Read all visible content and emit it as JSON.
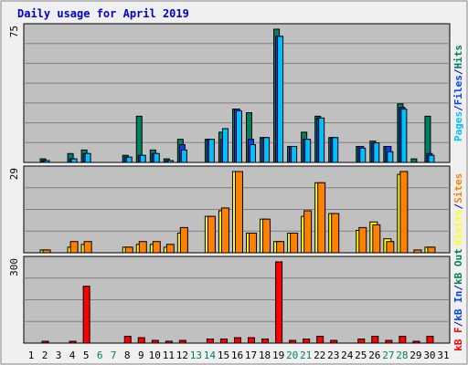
{
  "colors": {
    "background": "#f0f0f0",
    "plot_bg": "#c0c0c0",
    "title": "#0000cc",
    "hits": "#00805c",
    "files": "#0040ff",
    "pages": "#00c0ff",
    "visits": "#ffff00",
    "sites": "#ff8000",
    "kb_in": "#0040ff",
    "kb_out": "#00805c",
    "kb_f": "#ff0000",
    "weekend_label": "#00805c"
  },
  "chart_data": {
    "type": "bar",
    "title": "Daily usage for April 2019",
    "categories": [
      "1",
      "2",
      "3",
      "4",
      "5",
      "6",
      "7",
      "8",
      "9",
      "10",
      "11",
      "12",
      "13",
      "14",
      "15",
      "16",
      "17",
      "18",
      "19",
      "20",
      "21",
      "22",
      "23",
      "24",
      "25",
      "26",
      "27",
      "28",
      "29",
      "30",
      "31"
    ],
    "weekend_days": [
      "6",
      "7",
      "13",
      "14",
      "20",
      "21",
      "27",
      "28"
    ],
    "panels": [
      {
        "name": "top",
        "ytick": "75",
        "ymax": 75,
        "right_labels": [
          {
            "text": "Pages",
            "color_key": "pages"
          },
          {
            "text": "/",
            "color_key": "title"
          },
          {
            "text": "Files",
            "color_key": "files"
          },
          {
            "text": "/",
            "color_key": "title"
          },
          {
            "text": "Hits",
            "color_key": "hits"
          }
        ],
        "series": [
          {
            "name": "Hits",
            "color_key": "hits",
            "values": [
              0,
              2,
              0,
              5,
              7,
              0,
              0,
              4,
              26,
              7,
              2,
              13,
              0,
              13,
              17,
              30,
              28,
              14,
              75,
              9,
              17,
              26,
              14,
              0,
              9,
              12,
              9,
              33,
              2,
              26,
              0
            ]
          },
          {
            "name": "Files",
            "color_key": "files",
            "values": [
              0,
              1,
              0,
              2,
              5,
              0,
              0,
              3,
              4,
              5,
              1,
              10,
              0,
              13,
              13,
              30,
              13,
              14,
              71,
              9,
              13,
              25,
              14,
              0,
              9,
              11,
              9,
              31,
              0,
              5,
              0
            ]
          },
          {
            "name": "Pages",
            "color_key": "pages",
            "values": [
              0,
              1,
              0,
              2,
              5,
              0,
              0,
              3,
              4,
              5,
              1,
              7,
              0,
              13,
              19,
              29,
              10,
              14,
              71,
              9,
              13,
              25,
              14,
              0,
              8,
              11,
              6,
              30,
              0,
              4,
              0
            ]
          }
        ]
      },
      {
        "name": "middle",
        "ytick": "29",
        "ymax": 29,
        "right_labels": [
          {
            "text": "Visits",
            "color_key": "visits"
          },
          {
            "text": "/",
            "color_key": "title"
          },
          {
            "text": "Sites",
            "color_key": "sites"
          }
        ],
        "series": [
          {
            "name": "Visits",
            "color_key": "visits",
            "values": [
              0,
              1,
              0,
              2,
              3,
              0,
              0,
              2,
              3,
              3,
              2,
              7,
              0,
              13,
              15,
              29,
              7,
              12,
              4,
              7,
              13,
              25,
              14,
              0,
              8,
              11,
              5,
              28,
              0,
              2,
              0
            ]
          },
          {
            "name": "Sites",
            "color_key": "sites",
            "values": [
              0,
              1,
              0,
              4,
              4,
              0,
              0,
              2,
              4,
              4,
              3,
              9,
              0,
              13,
              16,
              29,
              7,
              12,
              4,
              7,
              15,
              25,
              14,
              0,
              9,
              10,
              4,
              29,
              1,
              2,
              0
            ]
          }
        ]
      },
      {
        "name": "bottom",
        "ytick": "300",
        "ymax": 300,
        "right_labels": [
          {
            "text": "kB F",
            "color_key": "kb_f"
          },
          {
            "text": "/",
            "color_key": "title"
          },
          {
            "text": "kB In",
            "color_key": "kb_in"
          },
          {
            "text": "/",
            "color_key": "title"
          },
          {
            "text": "kB Out",
            "color_key": "kb_out"
          }
        ],
        "series": [
          {
            "name": "kB F",
            "color_key": "kb_f",
            "values": [
              0,
              5,
              0,
              5,
              210,
              0,
              0,
              25,
              20,
              10,
              7,
              10,
              0,
              15,
              15,
              20,
              20,
              15,
              300,
              10,
              15,
              25,
              10,
              0,
              15,
              25,
              10,
              25,
              5,
              25,
              0
            ]
          }
        ]
      }
    ]
  }
}
